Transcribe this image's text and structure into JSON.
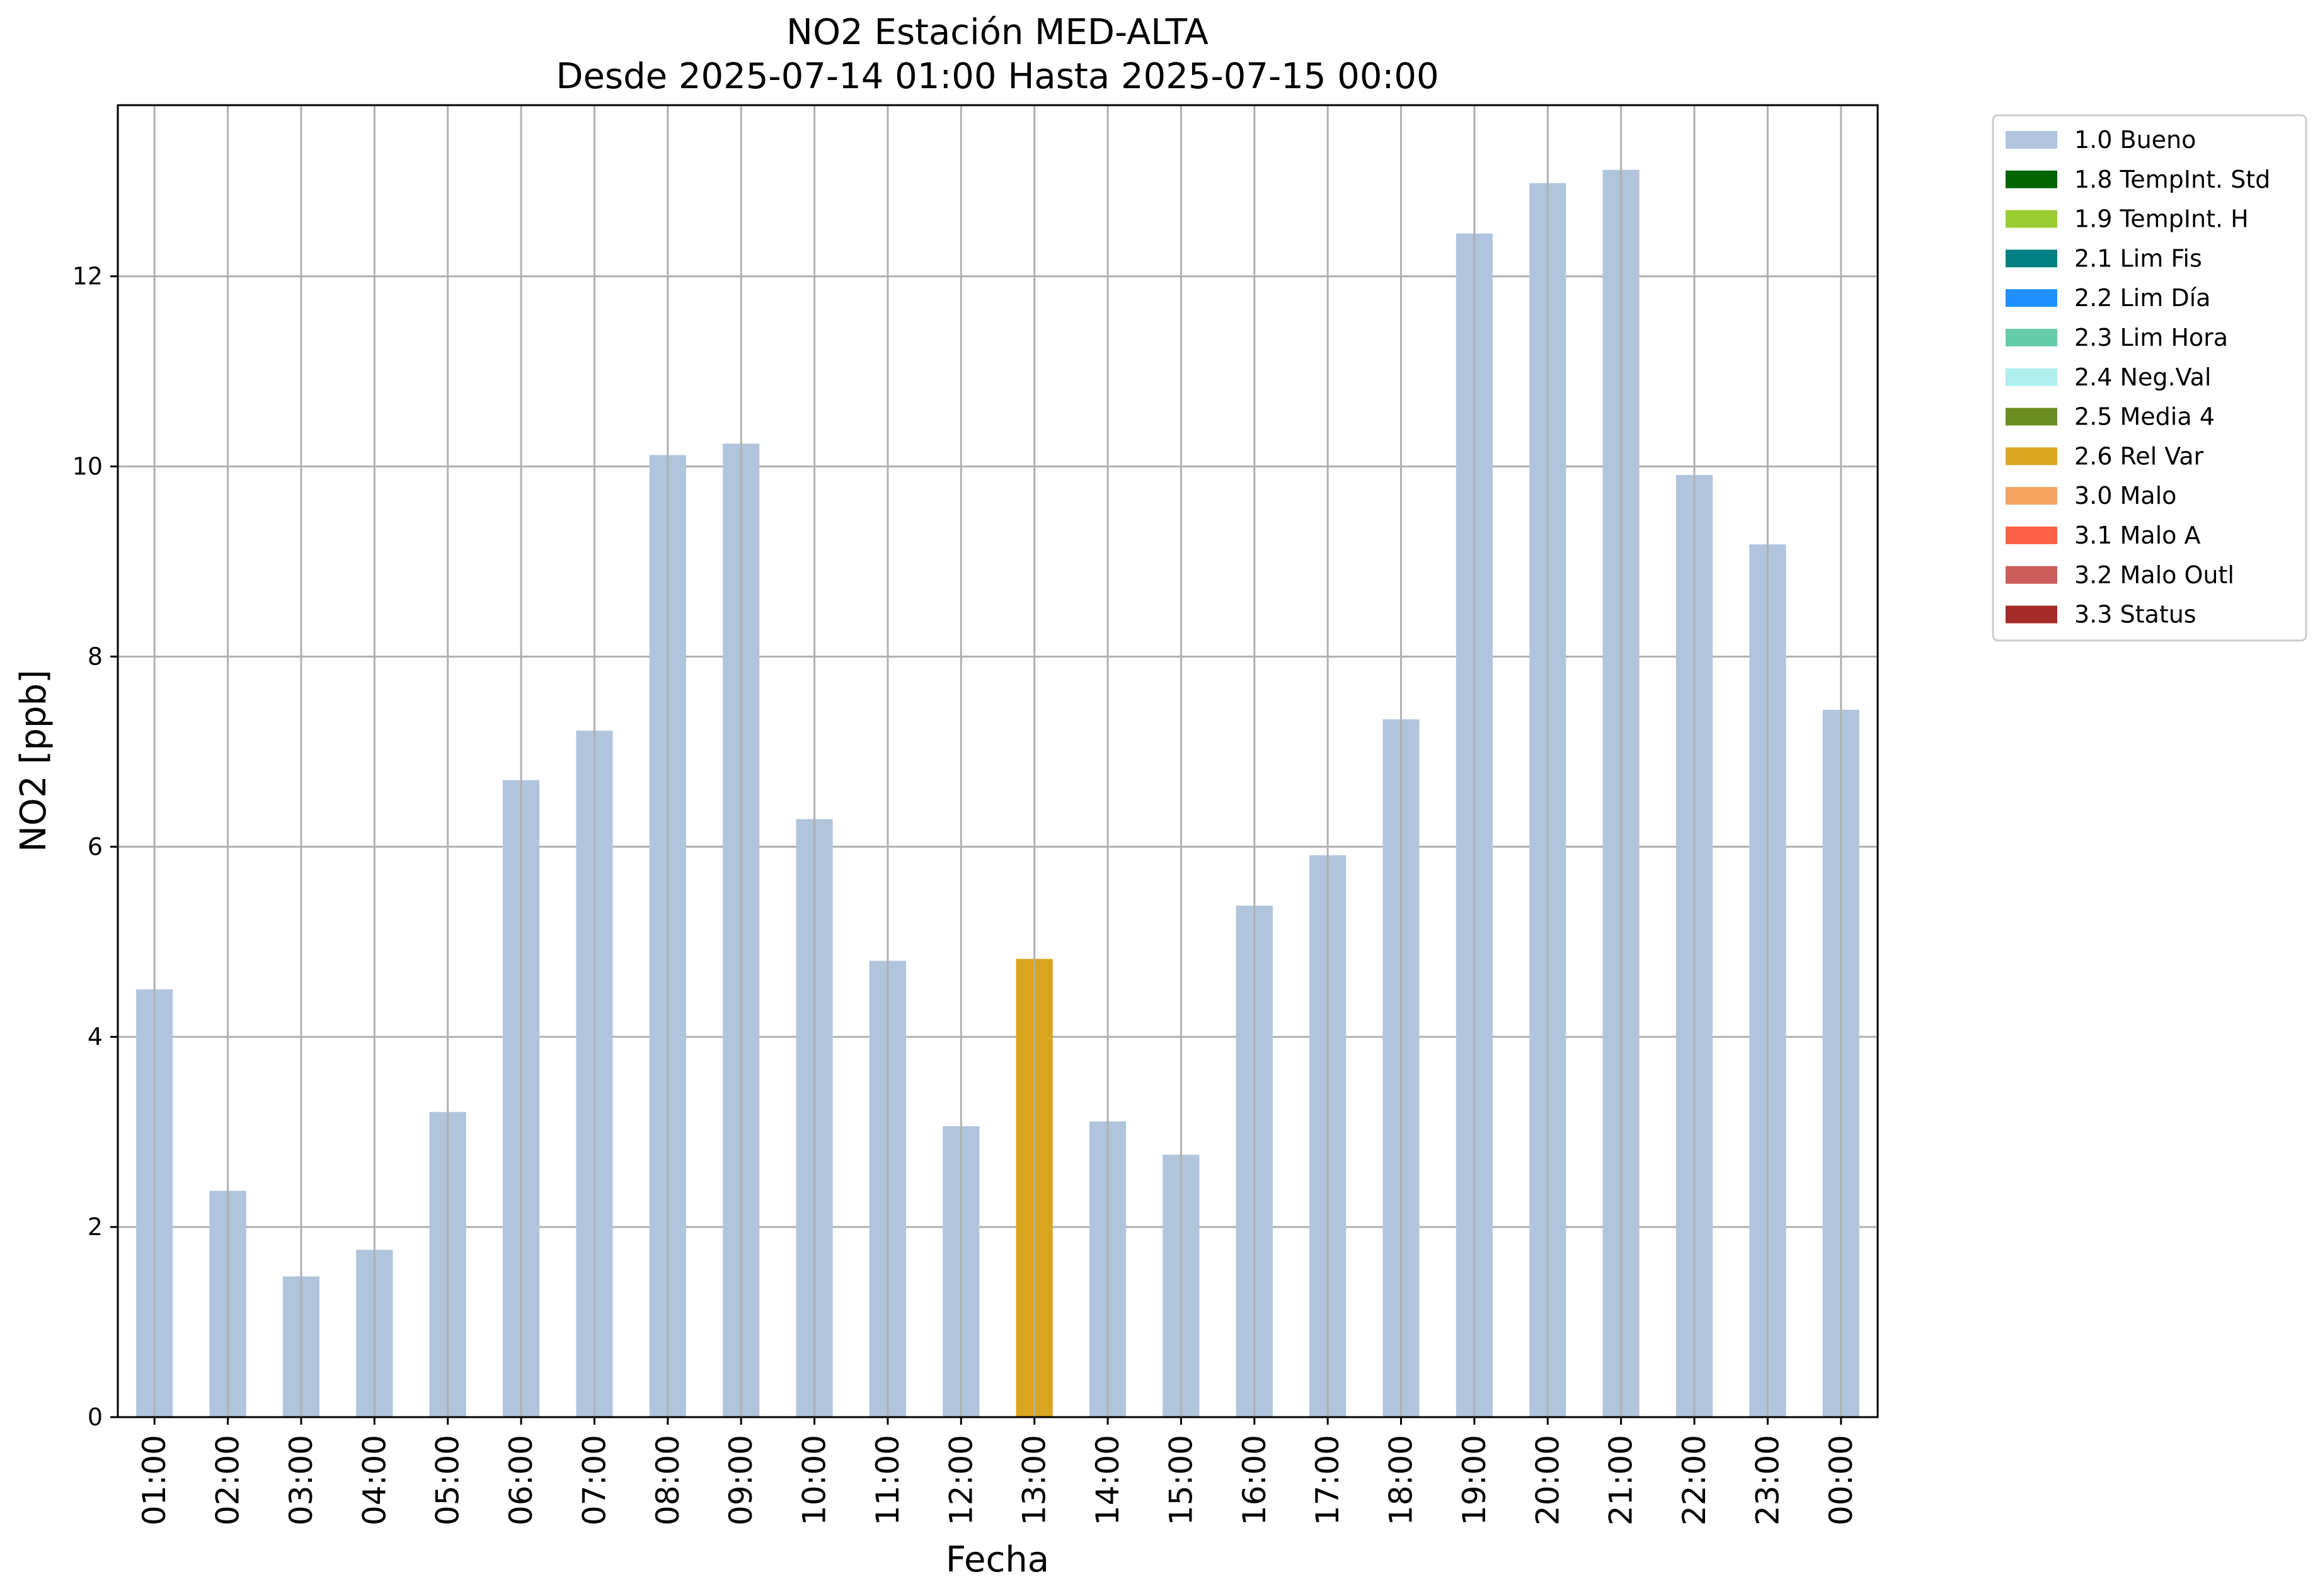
{
  "chart_data": {
    "type": "bar",
    "title": "NO2 Estación MED-ALTA",
    "subtitle": "Desde 2025-07-14 01:00 Hasta 2025-07-15 00:00",
    "xlabel": "Fecha",
    "ylabel": "NO2 [ppb]",
    "ylim": [
      0,
      13.8
    ],
    "yticks": [
      0,
      2,
      4,
      6,
      8,
      10,
      12
    ],
    "grid": true,
    "legend_position": "outside-top-right",
    "categories": [
      "01:00",
      "02:00",
      "03:00",
      "04:00",
      "05:00",
      "06:00",
      "07:00",
      "08:00",
      "09:00",
      "10:00",
      "11:00",
      "12:00",
      "13:00",
      "14:00",
      "15:00",
      "16:00",
      "17:00",
      "18:00",
      "19:00",
      "20:00",
      "21:00",
      "22:00",
      "23:00",
      "00:00"
    ],
    "values": [
      4.5,
      2.38,
      1.48,
      1.76,
      3.21,
      6.7,
      7.22,
      10.12,
      10.24,
      6.29,
      4.8,
      3.06,
      4.82,
      3.11,
      2.76,
      5.38,
      5.91,
      7.34,
      12.45,
      12.98,
      13.12,
      9.91,
      9.18,
      7.44
    ],
    "flags": [
      "1.0 Bueno",
      "1.0 Bueno",
      "1.0 Bueno",
      "1.0 Bueno",
      "1.0 Bueno",
      "1.0 Bueno",
      "1.0 Bueno",
      "1.0 Bueno",
      "1.0 Bueno",
      "1.0 Bueno",
      "1.0 Bueno",
      "1.0 Bueno",
      "2.6 Rel Var",
      "1.0 Bueno",
      "1.0 Bueno",
      "1.0 Bueno",
      "1.0 Bueno",
      "1.0 Bueno",
      "1.0 Bueno",
      "1.0 Bueno",
      "1.0 Bueno",
      "1.0 Bueno",
      "1.0 Bueno",
      "1.0 Bueno"
    ],
    "legend": [
      {
        "label": "1.0 Bueno",
        "color": "#b0c4de"
      },
      {
        "label": "1.8 TempInt. Std",
        "color": "#006400"
      },
      {
        "label": "1.9 TempInt. H",
        "color": "#9acd32"
      },
      {
        "label": "2.1 Lim Fis",
        "color": "#008080"
      },
      {
        "label": "2.2 Lim Día",
        "color": "#1e90ff"
      },
      {
        "label": "2.3 Lim Hora",
        "color": "#66cdaa"
      },
      {
        "label": "2.4 Neg.Val",
        "color": "#afeeee"
      },
      {
        "label": "2.5 Media 4",
        "color": "#6b8e23"
      },
      {
        "label": "2.6 Rel Var",
        "color": "#daa520"
      },
      {
        "label": "3.0 Malo",
        "color": "#f4a460"
      },
      {
        "label": "3.1 Malo A",
        "color": "#ff6347"
      },
      {
        "label": "3.2 Malo Outl",
        "color": "#cd5c5c"
      },
      {
        "label": "3.3 Status",
        "color": "#a52a2a"
      }
    ]
  }
}
